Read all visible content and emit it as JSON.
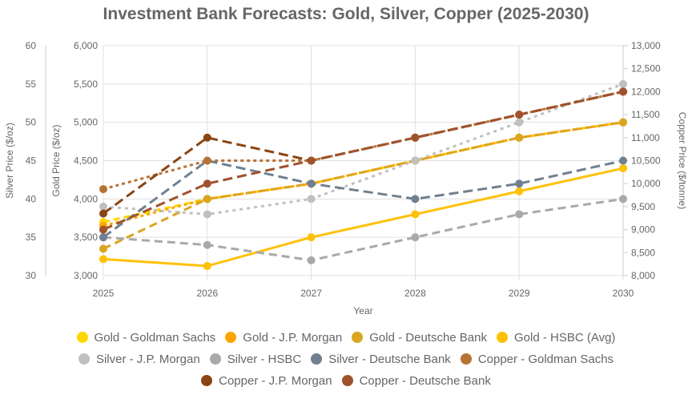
{
  "chart_data": {
    "type": "line",
    "title": "Investment Bank Forecasts: Gold, Silver, Copper (2025-2030)",
    "xlabel": "Year",
    "x": [
      "2025",
      "2026",
      "2027",
      "2028",
      "2029",
      "2030"
    ],
    "axes": {
      "silver": {
        "label": "Silver Price ($/oz)",
        "range": [
          30,
          60
        ],
        "ticks": [
          "30",
          "35",
          "40",
          "45",
          "50",
          "55",
          "60"
        ],
        "position": "left-outer"
      },
      "gold": {
        "label": "Gold Price ($/oz)",
        "range": [
          3000,
          6000
        ],
        "ticks": [
          "3,000",
          "3,500",
          "4,000",
          "4,500",
          "5,000",
          "5,500",
          "6,000"
        ],
        "position": "left"
      },
      "copper": {
        "label": "Copper Price ($/tonne)",
        "range": [
          8000,
          13000
        ],
        "ticks": [
          "8,000",
          "8,500",
          "9,000",
          "9,500",
          "10,000",
          "10,500",
          "11,000",
          "11,500",
          "12,000",
          "12,500",
          "13,000"
        ],
        "position": "right"
      }
    },
    "grid": true,
    "legend_position": "bottom",
    "series": [
      {
        "name": "Gold - Goldman Sachs",
        "axis": "gold",
        "color": "#FFD700",
        "dash": "8 5",
        "values": [
          3700,
          4000,
          4200,
          4500,
          4800,
          5000
        ]
      },
      {
        "name": "Gold - J.P. Morgan",
        "axis": "gold",
        "color": "#FFA500",
        "dash": "4 4",
        "values": [
          3650,
          4000,
          4200,
          4500,
          4800,
          5000
        ]
      },
      {
        "name": "Gold - Deutsche Bank",
        "axis": "gold",
        "color": "#DAA520",
        "dash": "10 6",
        "values": [
          3350,
          4000,
          4200,
          4500,
          4800,
          5000
        ]
      },
      {
        "name": "Gold - HSBC (Avg)",
        "axis": "gold",
        "color": "#FFC107",
        "dash": "",
        "values": [
          3215,
          3125,
          3500,
          3800,
          4100,
          4400
        ]
      },
      {
        "name": "Silver - J.P. Morgan",
        "axis": "silver",
        "color": "#C0C0C0",
        "dash": "4 5",
        "values": [
          39,
          38,
          40,
          45,
          50,
          55
        ]
      },
      {
        "name": "Silver - HSBC",
        "axis": "silver",
        "color": "#A9A9A9",
        "dash": "10 6",
        "values": [
          35,
          34,
          32,
          35,
          38,
          40
        ]
      },
      {
        "name": "Silver - Deutsche Bank",
        "axis": "silver",
        "color": "#708090",
        "dash": "12 6",
        "values": [
          35,
          45,
          42,
          40,
          42,
          45
        ]
      },
      {
        "name": "Copper - Goldman Sachs",
        "axis": "copper",
        "color": "#B87333",
        "dash": "4 4",
        "values": [
          9880,
          10500,
          10500,
          11000,
          11500,
          12000
        ]
      },
      {
        "name": "Copper - J.P. Morgan",
        "axis": "copper",
        "color": "#8B4513",
        "dash": "12 6",
        "values": [
          9350,
          11000,
          10500,
          11000,
          11500,
          12000
        ]
      },
      {
        "name": "Copper - Deutsche Bank",
        "axis": "copper",
        "color": "#A0522D",
        "dash": "12 6",
        "values": [
          9000,
          10000,
          10500,
          11000,
          11500,
          12000
        ]
      }
    ]
  }
}
